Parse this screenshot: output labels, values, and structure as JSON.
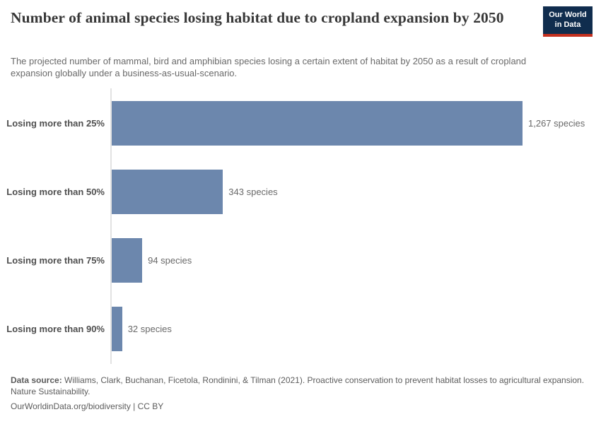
{
  "colors": {
    "bar": "#6c87ad",
    "axis_line": "#e2e2e2",
    "logo_background": "#102d4e",
    "logo_stripe": "#c4301f",
    "title_text": "#383838",
    "body_text": "#696969"
  },
  "header": {
    "title": "Number of animal species losing habitat due to cropland expansion by 2050",
    "subtitle": "The projected number of mammal, bird and amphibian species losing a certain extent of habitat by 2050 as a result of cropland expansion globally under a business-as-usual-scenario.",
    "logo": {
      "line1": "Our World",
      "line2": "in Data"
    }
  },
  "chart_data": {
    "type": "bar",
    "orientation": "horizontal",
    "title": "Number of animal species losing habitat due to cropland expansion by 2050",
    "categories": [
      "Losing more than 25%",
      "Losing more than 50%",
      "Losing more than 75%",
      "Losing more than 90%"
    ],
    "values": [
      1267,
      343,
      94,
      32
    ],
    "value_labels": [
      "1,267 species",
      "343 species",
      "94 species",
      "32 species"
    ],
    "unit": "species",
    "xlabel": "",
    "ylabel": "",
    "xlim": [
      0,
      1267
    ],
    "grid": false,
    "legend": false,
    "bar_color": "#6c87ad"
  },
  "footer": {
    "source_label": "Data source:",
    "source_text": " Williams, Clark, Buchanan, Ficetola, Rondinini, & Tilman (2021). Proactive conservation to prevent habitat losses to agricultural expansion. Nature Sustainability.",
    "link_line": "OurWorldinData.org/biodiversity | CC BY"
  }
}
